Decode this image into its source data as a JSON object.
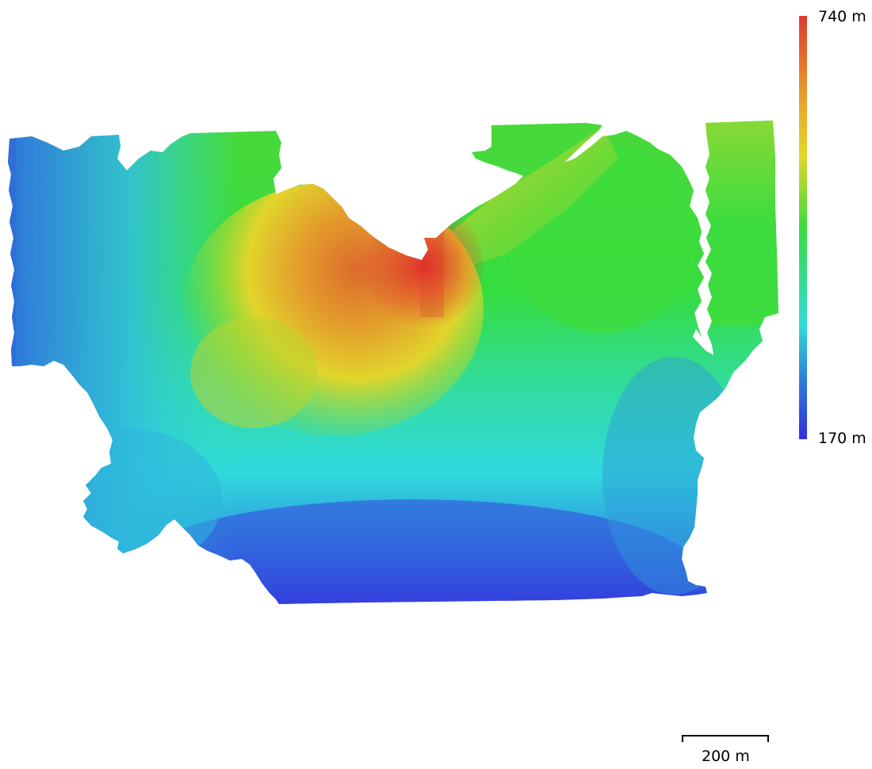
{
  "legend": {
    "max_label": "740 m",
    "min_label": "170 m",
    "colors": [
      "#dd3b2d",
      "#e9a32a",
      "#e3d62c",
      "#39dd3d",
      "#30dcd8",
      "#2d78d8",
      "#3430dc"
    ]
  },
  "scale_bar": {
    "label": "200 m"
  }
}
